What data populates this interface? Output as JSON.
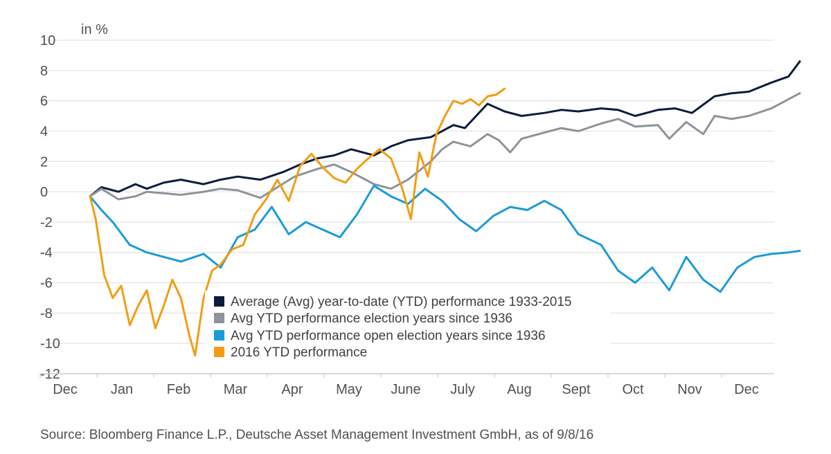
{
  "chart_data": {
    "type": "line",
    "unit_label": "in %",
    "ylim": [
      -12,
      10
    ],
    "y_ticks": [
      10,
      8,
      6,
      4,
      2,
      0,
      -2,
      -4,
      -6,
      -8,
      -10,
      -12
    ],
    "y_tick_labels": [
      "10",
      "8",
      "6",
      "4",
      "2",
      "0",
      "-2",
      "-4",
      "-6",
      "-8",
      "-10",
      "-12"
    ],
    "x_ticks": [
      "Dec",
      "Jan",
      "Feb",
      "Mar",
      "Apr",
      "May",
      "June",
      "July",
      "Aug",
      "Sept",
      "Oct",
      "Nov",
      "Dec"
    ],
    "grid": true,
    "legend_position": "bottom-center inside plot",
    "series": [
      {
        "name": "Average (Avg) year-to-date (YTD) performance 1933-2015",
        "color": "#0b1c3d",
        "x": [
          0.0,
          0.2,
          0.5,
          0.8,
          1.0,
          1.3,
          1.6,
          2.0,
          2.3,
          2.6,
          3.0,
          3.4,
          3.7,
          4.0,
          4.3,
          4.6,
          5.0,
          5.3,
          5.6,
          6.0,
          6.2,
          6.4,
          6.6,
          6.8,
          7.0,
          7.3,
          7.6,
          8.0,
          8.3,
          8.6,
          9.0,
          9.3,
          9.6,
          10.0,
          10.3,
          10.6,
          11.0,
          11.3,
          11.6,
          12.0,
          12.3,
          12.5
        ],
        "y": [
          -0.3,
          0.3,
          0.0,
          0.5,
          0.2,
          0.6,
          0.8,
          0.5,
          0.8,
          1.0,
          0.8,
          1.3,
          1.8,
          2.2,
          2.4,
          2.8,
          2.4,
          3.0,
          3.4,
          3.6,
          4.0,
          4.4,
          4.2,
          5.0,
          5.8,
          5.3,
          5.0,
          5.2,
          5.4,
          5.3,
          5.5,
          5.4,
          5.0,
          5.4,
          5.5,
          5.2,
          6.3,
          6.5,
          6.6,
          7.2,
          7.6,
          8.6
        ]
      },
      {
        "name": "Avg YTD performance election years since 1936",
        "color": "#8c939a",
        "x": [
          0.0,
          0.2,
          0.5,
          0.8,
          1.0,
          1.3,
          1.6,
          2.0,
          2.3,
          2.6,
          3.0,
          3.3,
          3.6,
          4.0,
          4.3,
          4.6,
          5.0,
          5.3,
          5.6,
          6.0,
          6.2,
          6.4,
          6.7,
          7.0,
          7.2,
          7.4,
          7.6,
          8.0,
          8.3,
          8.6,
          9.0,
          9.3,
          9.6,
          10.0,
          10.2,
          10.5,
          10.8,
          11.0,
          11.3,
          11.6,
          12.0,
          12.5
        ],
        "y": [
          -0.3,
          0.2,
          -0.5,
          -0.3,
          0.0,
          -0.1,
          -0.2,
          0.0,
          0.2,
          0.1,
          -0.4,
          0.3,
          1.0,
          1.5,
          1.8,
          1.3,
          0.5,
          0.2,
          0.8,
          2.0,
          2.8,
          3.3,
          3.0,
          3.8,
          3.4,
          2.6,
          3.5,
          3.9,
          4.2,
          4.0,
          4.5,
          4.8,
          4.3,
          4.4,
          3.5,
          4.6,
          3.8,
          5.0,
          4.8,
          5.0,
          5.5,
          6.5
        ]
      },
      {
        "name": "Avg YTD performance open election years since 1936",
        "color": "#1a9bd7",
        "x": [
          0.0,
          0.2,
          0.4,
          0.7,
          1.0,
          1.3,
          1.6,
          2.0,
          2.3,
          2.6,
          2.9,
          3.2,
          3.5,
          3.8,
          4.1,
          4.4,
          4.7,
          5.0,
          5.3,
          5.6,
          5.9,
          6.2,
          6.5,
          6.8,
          7.1,
          7.4,
          7.7,
          8.0,
          8.3,
          8.6,
          9.0,
          9.3,
          9.6,
          9.9,
          10.2,
          10.5,
          10.8,
          11.1,
          11.4,
          11.7,
          12.0,
          12.3,
          12.5
        ],
        "y": [
          -0.3,
          -1.2,
          -2.0,
          -3.5,
          -4.0,
          -4.3,
          -4.6,
          -4.1,
          -5.0,
          -3.0,
          -2.5,
          -1.0,
          -2.8,
          -2.0,
          -2.5,
          -3.0,
          -1.5,
          0.4,
          -0.3,
          -0.8,
          0.2,
          -0.6,
          -1.8,
          -2.6,
          -1.6,
          -1.0,
          -1.2,
          -0.6,
          -1.2,
          -2.8,
          -3.5,
          -5.2,
          -6.0,
          -5.0,
          -6.5,
          -4.3,
          -5.8,
          -6.6,
          -5.0,
          -4.3,
          -4.1,
          -4.0,
          -3.9
        ]
      },
      {
        "name": "2016 YTD performance",
        "color": "#f39c12",
        "x": [
          0.0,
          0.1,
          0.25,
          0.4,
          0.55,
          0.7,
          0.85,
          1.0,
          1.15,
          1.3,
          1.45,
          1.6,
          1.75,
          1.85,
          2.0,
          2.15,
          2.3,
          2.5,
          2.7,
          2.9,
          3.1,
          3.3,
          3.5,
          3.7,
          3.9,
          4.1,
          4.3,
          4.5,
          4.7,
          4.9,
          5.1,
          5.3,
          5.5,
          5.65,
          5.8,
          5.95,
          6.1,
          6.25,
          6.4,
          6.55,
          6.7,
          6.85,
          7.0,
          7.15,
          7.3
        ],
        "y": [
          -0.3,
          -1.8,
          -5.5,
          -7.0,
          -6.2,
          -8.8,
          -7.5,
          -6.5,
          -9.0,
          -7.5,
          -5.8,
          -7.0,
          -9.5,
          -10.8,
          -7.0,
          -5.2,
          -4.8,
          -3.8,
          -3.5,
          -1.5,
          -0.5,
          0.8,
          -0.6,
          1.7,
          2.5,
          1.6,
          0.9,
          0.6,
          1.5,
          2.2,
          2.8,
          2.2,
          0.2,
          -1.8,
          2.6,
          1.0,
          3.8,
          5.0,
          6.0,
          5.8,
          6.1,
          5.7,
          6.3,
          6.4,
          6.8
        ]
      }
    ]
  },
  "legend": {
    "items": [
      "Average (Avg) year-to-date (YTD) performance 1933-2015",
      "Avg YTD performance election years since 1936",
      "Avg YTD performance open election years since 1936",
      "2016 YTD performance"
    ]
  },
  "source": "Source: Bloomberg Finance L.P., Deutsche Asset Management Investment GmbH, as of 9/8/16"
}
